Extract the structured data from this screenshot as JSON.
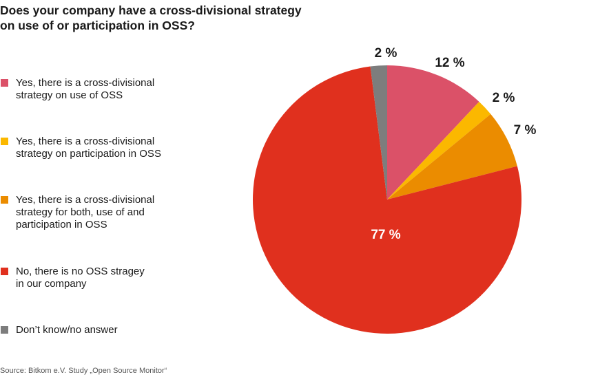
{
  "chart_data": {
    "type": "pie",
    "title": "Does your company have a cross-divisional strategy\non use of or participation in OSS?",
    "slices": [
      {
        "label": "Yes, there is a cross-divisional\nstrategy on use of OSS",
        "value": 12,
        "display": "12 %",
        "color": "#db5168"
      },
      {
        "label": "Yes, there is a cross-divisional\nstrategy on participation in OSS",
        "value": 2,
        "display": "2 %",
        "color": "#fbb800"
      },
      {
        "label": "Yes, there is a cross-divisional\nstrategy for both, use of and\nparticipation in OSS",
        "value": 7,
        "display": "7 %",
        "color": "#eb8c00"
      },
      {
        "label": "No, there is no OSS stragey\nin our company",
        "value": 77,
        "display": "77 %",
        "color": "#e0301e"
      },
      {
        "label": "Don’t know/no answer",
        "value": 2,
        "display": "2 %",
        "color": "#7d7d7d"
      }
    ],
    "legend_position": "left"
  },
  "source": "Source: Bitkom e.V. Study „Open Source Monitor“"
}
